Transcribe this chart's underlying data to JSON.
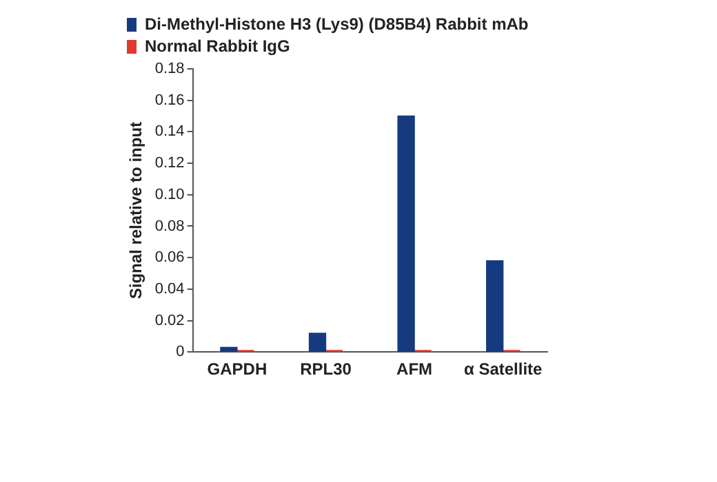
{
  "chart_data": {
    "type": "bar",
    "ylabel": "Signal relative to input",
    "categories": [
      "GAPDH",
      "RPL30",
      "AFM",
      "α Satellite"
    ],
    "series": [
      {
        "name": "Di-Methyl-Histone H3 (Lys9) (D85B4) Rabbit mAb",
        "color": "#153a80",
        "values": [
          0.003,
          0.012,
          0.15,
          0.058
        ]
      },
      {
        "name": "Normal Rabbit IgG",
        "color": "#e03a30",
        "values": [
          0.001,
          0.001,
          0.001,
          0.001
        ]
      }
    ],
    "ylim": [
      0,
      0.18
    ],
    "yticks": [
      0,
      {
        "value": 0.02,
        "label": "0.02"
      },
      {
        "value": 0.04,
        "label": "0.04"
      },
      {
        "value": 0.06,
        "label": "0.06"
      },
      {
        "value": 0.08,
        "label": "0.08"
      },
      {
        "value": 0.1,
        "label": "0.10"
      },
      {
        "value": 0.12,
        "label": "0.12"
      },
      {
        "value": 0.14,
        "label": "0.14"
      },
      {
        "value": 0.16,
        "label": "0.16"
      },
      {
        "value": 0.18,
        "label": "0.18"
      }
    ],
    "grid": false,
    "legend": "top left"
  }
}
